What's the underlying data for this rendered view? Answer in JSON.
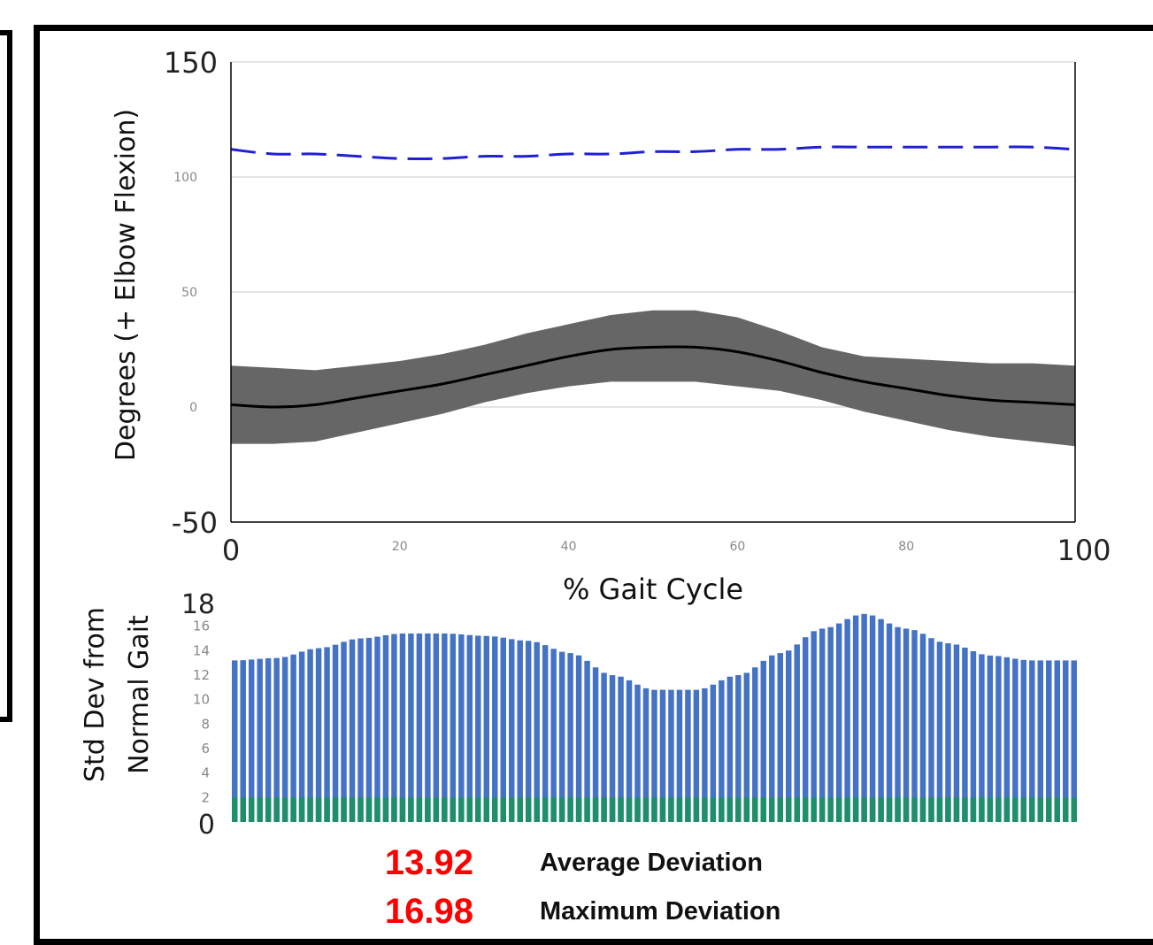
{
  "colors": {
    "normal_band": "#666666",
    "normal_mean": "#000000",
    "subject_line": "#1f1fd6",
    "bars_blue": "#4472c4",
    "bars_green": "#1f8f6a",
    "stat_value": "#ff0000"
  },
  "chart_data": [
    {
      "type": "line",
      "ylabel": "Degrees (+ Elbow Flexion)",
      "xlabel": "% Gait Cycle",
      "xlim": [
        0,
        100
      ],
      "ylim": [
        -50,
        150
      ],
      "x_ticks": [
        "0",
        "20",
        "40",
        "60",
        "80",
        "100"
      ],
      "y_ticks": [
        "-50",
        "0",
        "50",
        "100",
        "150"
      ],
      "grid": "horizontal",
      "series": [
        {
          "style": "dashed",
          "color": "#1f1fd6",
          "x": [
            0,
            5,
            10,
            15,
            20,
            25,
            30,
            35,
            40,
            45,
            50,
            55,
            60,
            65,
            70,
            75,
            80,
            85,
            90,
            95,
            100
          ],
          "y": [
            112,
            110,
            110,
            109,
            108,
            108,
            109,
            109,
            110,
            110,
            111,
            111,
            112,
            112,
            113,
            113,
            113,
            113,
            113,
            113,
            112
          ]
        },
        {
          "style": "solid",
          "color": "#000000",
          "x": [
            0,
            5,
            10,
            15,
            20,
            25,
            30,
            35,
            40,
            45,
            50,
            55,
            60,
            65,
            70,
            75,
            80,
            85,
            90,
            95,
            100
          ],
          "y": [
            1,
            0,
            1,
            4,
            7,
            10,
            14,
            18,
            22,
            25,
            26,
            26,
            24,
            20,
            15,
            11,
            8,
            5,
            3,
            2,
            1
          ]
        },
        {
          "style": "band",
          "color": "#666666",
          "x": [
            0,
            5,
            10,
            15,
            20,
            25,
            30,
            35,
            40,
            45,
            50,
            55,
            60,
            65,
            70,
            75,
            80,
            85,
            90,
            95,
            100
          ],
          "upper": [
            18,
            17,
            16,
            18,
            20,
            23,
            27,
            32,
            36,
            40,
            42,
            42,
            39,
            33,
            26,
            22,
            21,
            20,
            19,
            19,
            18
          ],
          "lower": [
            -16,
            -16,
            -15,
            -11,
            -7,
            -3,
            2,
            6,
            9,
            11,
            11,
            11,
            9,
            7,
            3,
            -2,
            -6,
            -10,
            -13,
            -15,
            -17
          ]
        }
      ]
    },
    {
      "type": "bar",
      "ylabel": "Std Dev from Normal Gait",
      "ylim": [
        0,
        18
      ],
      "y_ticks": [
        "0",
        "2",
        "4",
        "6",
        "8",
        "10",
        "12",
        "14",
        "16",
        "18"
      ],
      "categories_count": 101,
      "profile_x": [
        0,
        5,
        10,
        15,
        20,
        25,
        30,
        35,
        40,
        45,
        50,
        55,
        60,
        65,
        70,
        75,
        80,
        85,
        90,
        95,
        100
      ],
      "profile_y": [
        13.2,
        13.4,
        14.2,
        15,
        15.4,
        15.4,
        15.2,
        14.8,
        13.8,
        12,
        10.8,
        10.8,
        12,
        13.8,
        15.8,
        17,
        15.8,
        14.6,
        13.6,
        13.2,
        13.2
      ],
      "baseline_series_value": 2
    }
  ],
  "stats": {
    "average_value": "13.92",
    "average_label": "Average Deviation",
    "maximum_value": "16.98",
    "maximum_label": "Maximum Deviation"
  }
}
